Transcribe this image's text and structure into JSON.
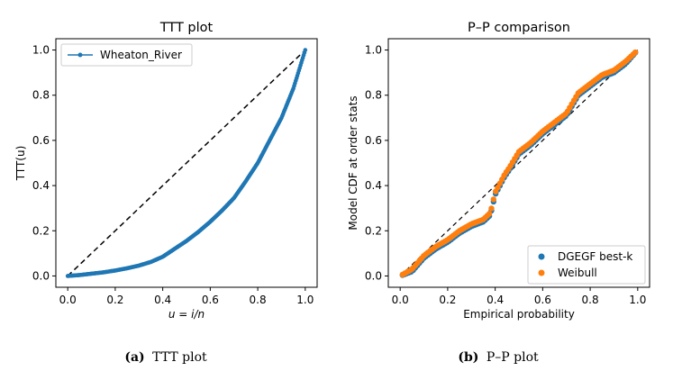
{
  "colors": {
    "blue": "#1f77b4",
    "orange": "#ff7f0e"
  },
  "chart_data": [
    {
      "type": "line",
      "title": "TTT plot",
      "xlabel": "u = i/n",
      "ylabel": "TTT(u)",
      "xlim": [
        -0.05,
        1.05
      ],
      "ylim": [
        -0.05,
        1.05
      ],
      "xticks": [
        "0.0",
        "0.2",
        "0.4",
        "0.6",
        "0.8",
        "1.0"
      ],
      "yticks": [
        "0.0",
        "0.2",
        "0.4",
        "0.6",
        "0.8",
        "1.0"
      ],
      "legend": {
        "location": "top-left",
        "entries": [
          "Wheaton_River"
        ]
      },
      "series": [
        {
          "name": "Wheaton_River",
          "style": "line-with-dot-markers",
          "x": [
            0.0,
            0.05,
            0.1,
            0.15,
            0.2,
            0.25,
            0.3,
            0.35,
            0.4,
            0.45,
            0.5,
            0.55,
            0.6,
            0.65,
            0.7,
            0.75,
            0.8,
            0.85,
            0.9,
            0.95,
            1.0
          ],
          "y": [
            0.0,
            0.004,
            0.01,
            0.016,
            0.024,
            0.034,
            0.046,
            0.062,
            0.085,
            0.12,
            0.155,
            0.195,
            0.24,
            0.29,
            0.345,
            0.42,
            0.5,
            0.6,
            0.7,
            0.83,
            1.0
          ]
        },
        {
          "name": "reference",
          "style": "dashed-black",
          "x": [
            0,
            1
          ],
          "y": [
            0,
            1
          ]
        }
      ]
    },
    {
      "type": "scatter",
      "title": "P–P comparison",
      "xlabel": "Empirical probability",
      "ylabel": "Model CDF at order stats",
      "xlim": [
        -0.05,
        1.05
      ],
      "ylim": [
        -0.05,
        1.05
      ],
      "xticks": [
        "0.0",
        "0.2",
        "0.4",
        "0.6",
        "0.8",
        "1.0"
      ],
      "yticks": [
        "0.0",
        "0.2",
        "0.4",
        "0.6",
        "0.8",
        "1.0"
      ],
      "legend": {
        "location": "bottom-right",
        "entries": [
          "DGEGF best-k",
          "Weibull"
        ]
      },
      "reference_line": {
        "style": "dashed-black",
        "x": [
          0,
          1
        ],
        "y": [
          0,
          1
        ]
      },
      "series": [
        {
          "name": "DGEGF best-k",
          "x": [
            0.0,
            0.05,
            0.1,
            0.15,
            0.2,
            0.25,
            0.3,
            0.35,
            0.38,
            0.4,
            0.42,
            0.44,
            0.46,
            0.5,
            0.55,
            0.6,
            0.65,
            0.7,
            0.75,
            0.8,
            0.85,
            0.9,
            0.95,
            1.0
          ],
          "y": [
            0.0,
            0.02,
            0.08,
            0.12,
            0.15,
            0.19,
            0.22,
            0.24,
            0.27,
            0.36,
            0.4,
            0.44,
            0.47,
            0.54,
            0.58,
            0.63,
            0.67,
            0.71,
            0.8,
            0.84,
            0.88,
            0.9,
            0.94,
            1.0
          ]
        },
        {
          "name": "Weibull",
          "x": [
            0.0,
            0.05,
            0.1,
            0.15,
            0.2,
            0.25,
            0.3,
            0.35,
            0.38,
            0.4,
            0.42,
            0.44,
            0.46,
            0.5,
            0.55,
            0.6,
            0.65,
            0.7,
            0.75,
            0.8,
            0.85,
            0.9,
            0.95,
            1.0
          ],
          "y": [
            0.0,
            0.03,
            0.09,
            0.13,
            0.16,
            0.2,
            0.23,
            0.25,
            0.28,
            0.37,
            0.41,
            0.45,
            0.48,
            0.55,
            0.59,
            0.64,
            0.68,
            0.72,
            0.81,
            0.85,
            0.89,
            0.91,
            0.95,
            1.0
          ]
        }
      ]
    }
  ],
  "captions": [
    {
      "label": "(a)",
      "text": "TTT plot"
    },
    {
      "label": "(b)",
      "text": "P–P plot"
    }
  ]
}
